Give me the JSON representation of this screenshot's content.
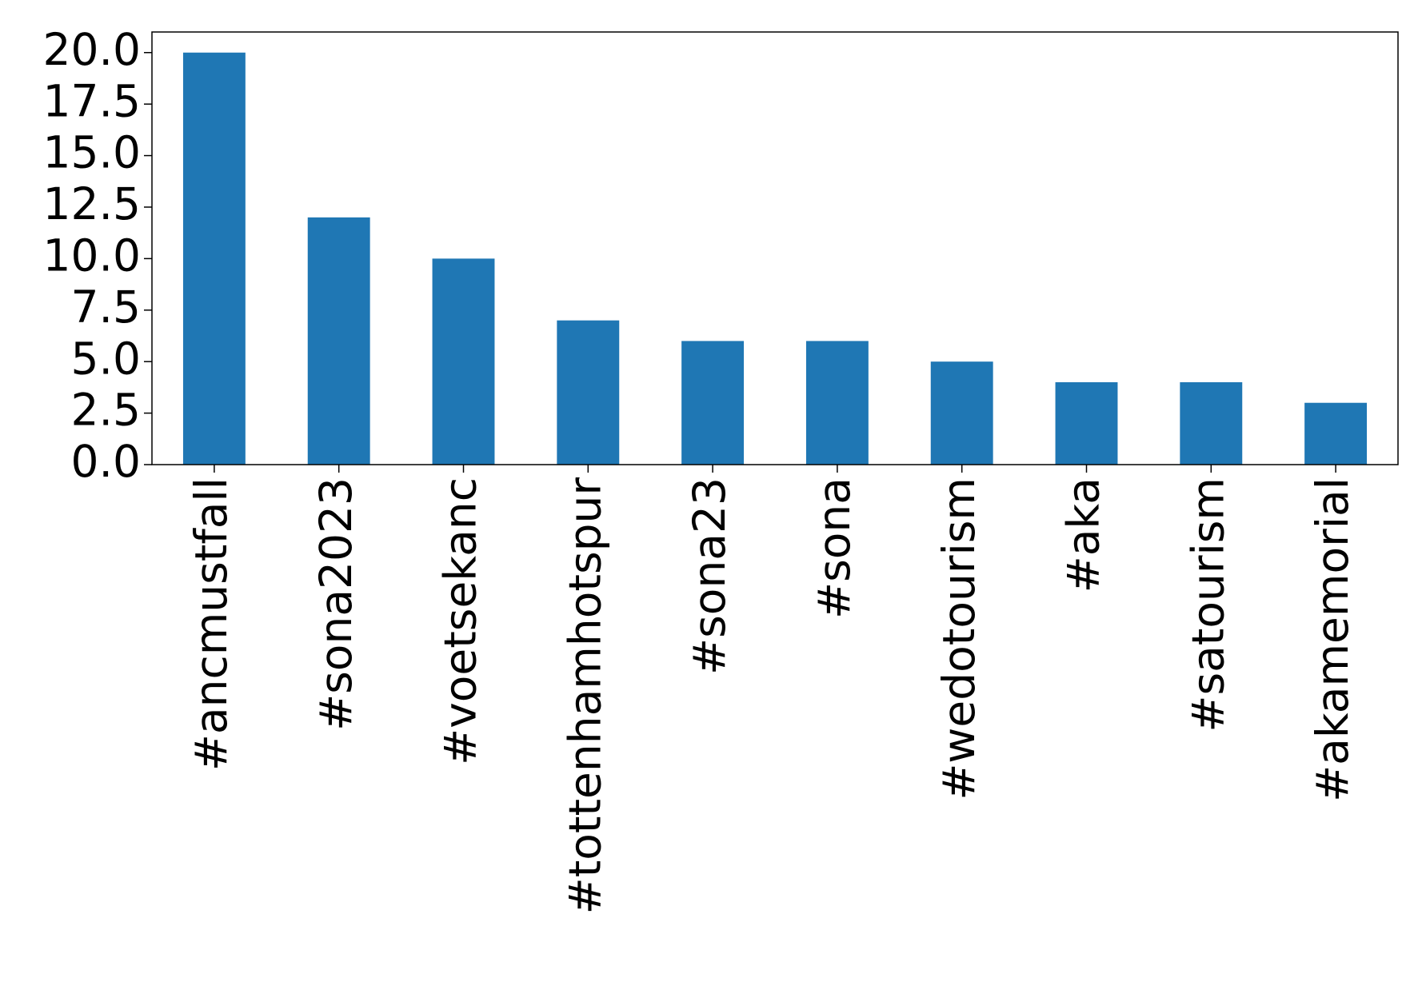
{
  "chart_data": {
    "type": "bar",
    "categories": [
      "#ancmustfall",
      "#sona2023",
      "#voetsekanc",
      "#tottenhamhotspur",
      "#sona23",
      "#sona",
      "#wedotourism",
      "#aka",
      "#satourism",
      "#akamemorial"
    ],
    "values": [
      20,
      12,
      10,
      7,
      6,
      6,
      5,
      4,
      4,
      3
    ],
    "color": "#1f77b4",
    "ylim": [
      0,
      21
    ],
    "yticks": [
      {
        "value": 0,
        "label": "0.0"
      },
      {
        "value": 2.5,
        "label": "2.5"
      },
      {
        "value": 5,
        "label": "5.0"
      },
      {
        "value": 7.5,
        "label": "7.5"
      },
      {
        "value": 10,
        "label": "10.0"
      },
      {
        "value": 12.5,
        "label": "12.5"
      },
      {
        "value": 15,
        "label": "15.0"
      },
      {
        "value": 17.5,
        "label": "17.5"
      },
      {
        "value": 20,
        "label": "20.0"
      }
    ],
    "grid": false
  }
}
